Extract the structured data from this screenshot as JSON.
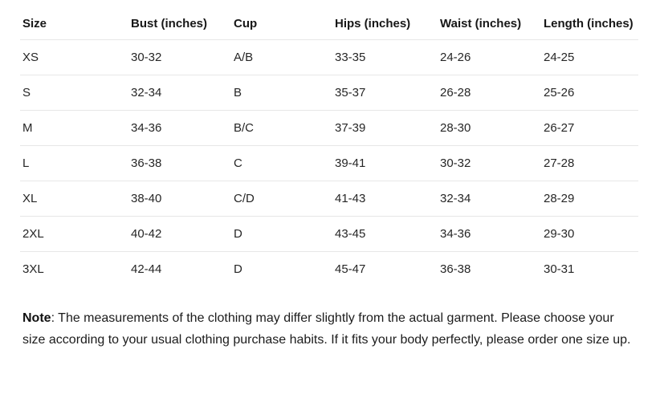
{
  "page": {
    "background": "#ffffff",
    "text_color": "#1c1c1c",
    "separator_color": "#e7e7e7"
  },
  "size_chart": {
    "columns": [
      "Size",
      "Bust (inches)",
      "Cup",
      "Hips (inches)",
      "Waist (inches)",
      "Length (inches)"
    ],
    "rows": [
      [
        "XS",
        "30-32",
        "A/B",
        "33-35",
        "24-26",
        "24-25"
      ],
      [
        "S",
        "32-34",
        "B",
        "35-37",
        "26-28",
        "25-26"
      ],
      [
        "M",
        "34-36",
        "B/C",
        "37-39",
        "28-30",
        "26-27"
      ],
      [
        "L",
        "36-38",
        "C",
        "39-41",
        "30-32",
        "27-28"
      ],
      [
        "XL",
        "38-40",
        "C/D",
        "41-43",
        "32-34",
        "28-29"
      ],
      [
        "2XL",
        "40-42",
        "D",
        "43-45",
        "34-36",
        "29-30"
      ],
      [
        "3XL",
        "42-44",
        "D",
        "45-47",
        "36-38",
        "30-31"
      ]
    ]
  },
  "note": {
    "label": "Note",
    "body": ": The measurements of the clothing may differ slightly from the actual garment. Please choose your size according to your usual clothing purchase habits. If it fits your body perfectly, please order one size up."
  }
}
